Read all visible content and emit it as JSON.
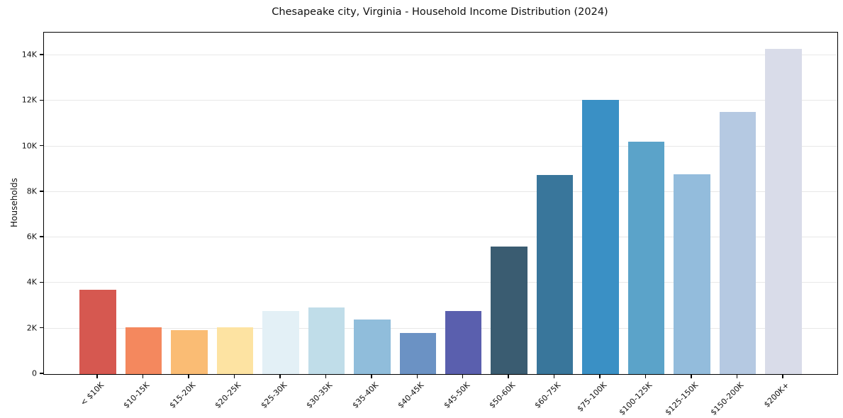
{
  "chart_data": {
    "type": "bar",
    "title": "Chesapeake city, Virginia - Household Income Distribution (2024)",
    "xlabel": "",
    "ylabel": "Households",
    "ylim": [
      0,
      15000
    ],
    "grid": "horizontal",
    "legend": "none",
    "ytick_values": [
      0,
      2000,
      4000,
      6000,
      8000,
      10000,
      12000,
      14000
    ],
    "ytick_labels": [
      "0",
      "2K",
      "4K",
      "6K",
      "8K",
      "10K",
      "12K",
      "14K"
    ],
    "categories": [
      "< $10K",
      "$10-15K",
      "$15-20K",
      "$20-25K",
      "$25-30K",
      "$30-35K",
      "$35-40K",
      "$40-45K",
      "$45-50K",
      "$50-60K",
      "$60-75K",
      "$75-100K",
      "$100-125K",
      "$125-150K",
      "$150-200K",
      "$200K+"
    ],
    "values": [
      3690,
      2060,
      1940,
      2050,
      2760,
      2940,
      2410,
      1820,
      2780,
      5610,
      8730,
      12050,
      10210,
      8780,
      11510,
      14280
    ],
    "bar_colors": [
      "#d65850",
      "#f4885e",
      "#fabc74",
      "#fde3a2",
      "#e3f0f6",
      "#c0dde9",
      "#90bddb",
      "#6b92c4",
      "#5a5fae",
      "#3a5c71",
      "#39769b",
      "#3a90c5",
      "#5ba3c9",
      "#93bcdc",
      "#b5c9e2",
      "#d9dce9"
    ],
    "colors": {
      "grid": "#e8e8e8",
      "axis": "#000000",
      "text": "#111111",
      "background": "#ffffff"
    }
  }
}
